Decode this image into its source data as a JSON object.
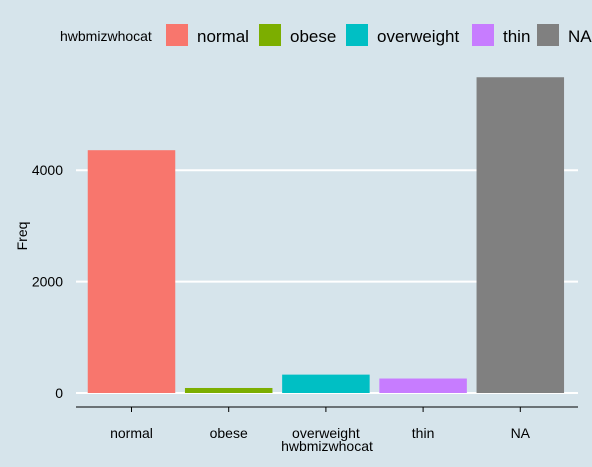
{
  "chart_data": {
    "type": "bar",
    "xlabel": "hwbmizwhocat",
    "ylabel": "Freq",
    "legend_title": "hwbmizwhocat",
    "legend_position": "top",
    "categories": [
      "normal",
      "obese",
      "overweight",
      "thin",
      "NA"
    ],
    "values": [
      4360,
      90,
      330,
      260,
      5670
    ],
    "colors": [
      "#f8766d",
      "#7cae00",
      "#00bfc4",
      "#c77cff",
      "#808080"
    ],
    "ylim": [
      0,
      5800
    ],
    "yticks": [
      0,
      2000,
      4000
    ],
    "ytick_labels": [
      "0",
      "2000",
      "4000"
    ],
    "grid": true,
    "grid_color": "#ffffff",
    "background_color": "#d6e4eb"
  }
}
